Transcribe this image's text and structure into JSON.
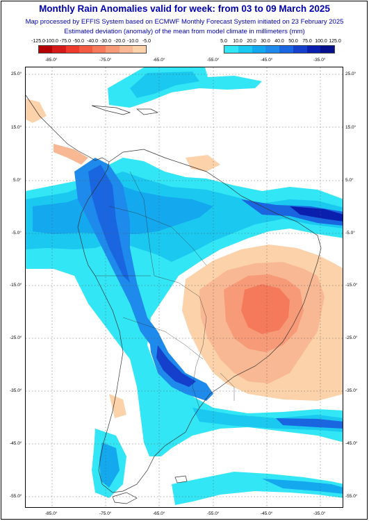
{
  "header": {
    "title": "Monthly Rain Anomalies valid for week: from 03 to 09 March 2025",
    "subtitle1": "Map processed by EFFIS System based on ECMWF Monthly Forecast System initiated on 23 February 2025",
    "subtitle2": "Estimated deviation (anomaly) of the mean from model climate in millimeters (mm)"
  },
  "legend": {
    "negative": {
      "labels": [
        "-125.0",
        "-100.0",
        "-75.0",
        "-50.0",
        "-40.0",
        "-30.0",
        "-20.0",
        "-10.0",
        "-5.0"
      ],
      "colors": [
        "#b40000",
        "#d61a1a",
        "#ef3b2c",
        "#f25b42",
        "#f47a5b",
        "#f79a78",
        "#f8b894",
        "#fbd2aa"
      ]
    },
    "positive": {
      "labels": [
        "5.0",
        "10.0",
        "20.0",
        "30.0",
        "40.0",
        "50.0",
        "75.0",
        "100.0",
        "125.0"
      ],
      "colors": [
        "#33e6f5",
        "#1ac8f0",
        "#14a8ee",
        "#1e8aeb",
        "#1a66e0",
        "#1440cc",
        "#0b1fae",
        "#06108c"
      ]
    }
  },
  "axes": {
    "top_lon": [
      "-85.0°",
      "-75.0°",
      "-65.0°",
      "-55.0°",
      "-45.0°",
      "-35.0°"
    ],
    "bottom_lon": [
      "-85.0°",
      "-75.0°",
      "-65.0°",
      "-55.0°",
      "-45.0°",
      "-35.0°"
    ],
    "lat": [
      "25.0°",
      "15.0°",
      "5.0°",
      "-5.0°",
      "-15.0°",
      "-25.0°",
      "-35.0°",
      "-45.0°",
      "-55.0°"
    ]
  },
  "colors": {
    "title": "#0000b0",
    "grid": "#555555",
    "coast": "#333333"
  }
}
